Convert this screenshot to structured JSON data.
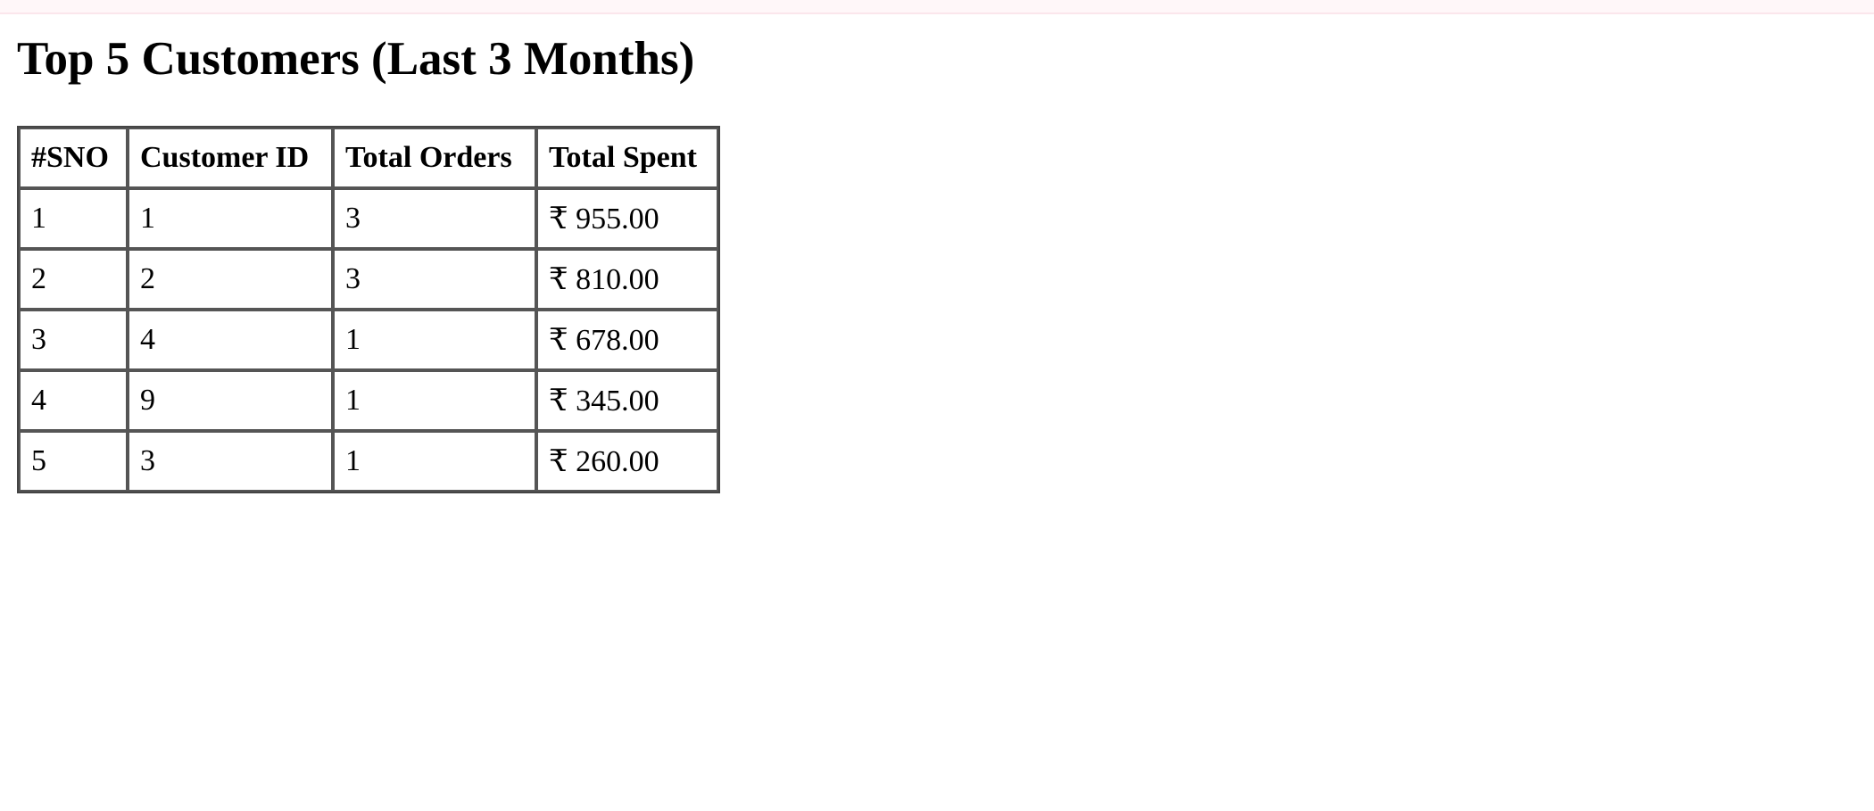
{
  "page": {
    "title": "Top 5 Customers (Last 3 Months)"
  },
  "table": {
    "headers": [
      "#SNO",
      "Customer ID",
      "Total Orders",
      "Total Spent"
    ],
    "rows": [
      [
        "1",
        "1",
        "3",
        "₹ 955.00"
      ],
      [
        "2",
        "2",
        "3",
        "₹ 810.00"
      ],
      [
        "3",
        "4",
        "1",
        "₹ 678.00"
      ],
      [
        "4",
        "9",
        "1",
        "₹ 345.00"
      ],
      [
        "5",
        "3",
        "1",
        "₹ 260.00"
      ]
    ]
  },
  "colors": {
    "background": "#ffffff",
    "text": "#000000",
    "table_border": "#555555",
    "top_strip": "#fff7f9"
  }
}
